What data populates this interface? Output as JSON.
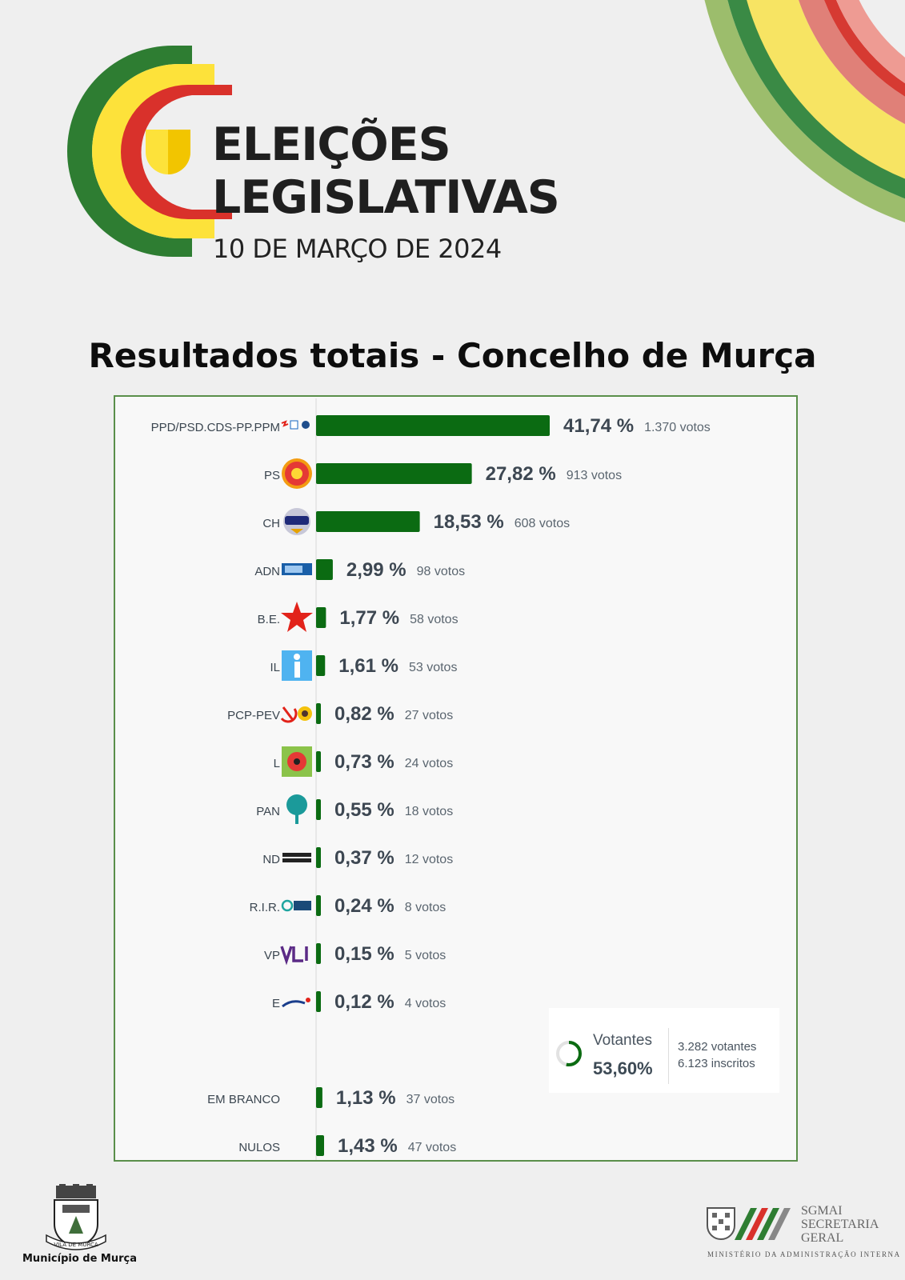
{
  "header": {
    "logo_line1": "ELEIÇÕES",
    "logo_line2": "LEGISLATIVAS",
    "logo_date": "10 DE MARÇO DE 2024",
    "heading": "Resultados totais - Concelho de Murça"
  },
  "colors": {
    "bar": "#0b6b12",
    "logo_green": "#2e7d32",
    "logo_yellow": "#fde23a",
    "logo_red": "#d9312b",
    "panel_border": "#5a8f4a"
  },
  "chart_data": {
    "type": "bar",
    "orientation": "horizontal",
    "title": "",
    "xlabel": "",
    "ylabel": "",
    "xlim": [
      0,
      41.74
    ],
    "grid": false,
    "categories": [
      "PPD/PSD.CDS-PP.PPM",
      "PS",
      "CH",
      "ADN",
      "B.E.",
      "IL",
      "PCP-PEV",
      "L",
      "PAN",
      "ND",
      "R.I.R.",
      "VP",
      "E",
      "EM BRANCO",
      "NULOS"
    ],
    "values": [
      41.74,
      27.82,
      18.53,
      2.99,
      1.77,
      1.61,
      0.82,
      0.73,
      0.55,
      0.37,
      0.24,
      0.15,
      0.12,
      1.13,
      1.43
    ],
    "value_labels": [
      "41,74 %",
      "27,82 %",
      "18,53 %",
      "2,99 %",
      "1,77 %",
      "1,61 %",
      "0,82 %",
      "0,73 %",
      "0,55 %",
      "0,37 %",
      "0,24 %",
      "0,15 %",
      "0,12 %",
      "1,13 %",
      "1,43 %"
    ],
    "votes": [
      "1.370 votos",
      "913 votos",
      "608 votos",
      "98 votos",
      "58 votos",
      "53 votos",
      "27 votos",
      "24 votos",
      "18 votos",
      "12 votos",
      "8 votos",
      "5 votos",
      "4 votos",
      "37 votos",
      "47 votos"
    ],
    "party_icons": [
      "ad-logo-icon",
      "ps-fist-rose-icon",
      "chega-logo-icon",
      "adn-logo-icon",
      "be-star-icon",
      "il-logo-icon",
      "pcp-pev-hammer-sickle-sunflower-icon",
      "livre-poppy-icon",
      "pan-tree-icon",
      "nova-direita-logo-icon",
      "rir-logo-icon",
      "volt-logo-icon",
      "ergue-te-logo-icon",
      "",
      ""
    ]
  },
  "turnout": {
    "label": "Votantes",
    "percent": "53,60%",
    "percent_value": 53.6,
    "votantes": "3.282 votantes",
    "inscritos": "6.123 inscritos"
  },
  "footer": {
    "municipio": "Município de Murça",
    "crest_ribbon": "VILA DE MURÇA",
    "sgmai_1": "SGMAI",
    "sgmai_2": "SECRETARIA",
    "sgmai_3": "GERAL",
    "ministry": "MINISTÉRIO DA ADMINISTRAÇÃO INTERNA"
  }
}
